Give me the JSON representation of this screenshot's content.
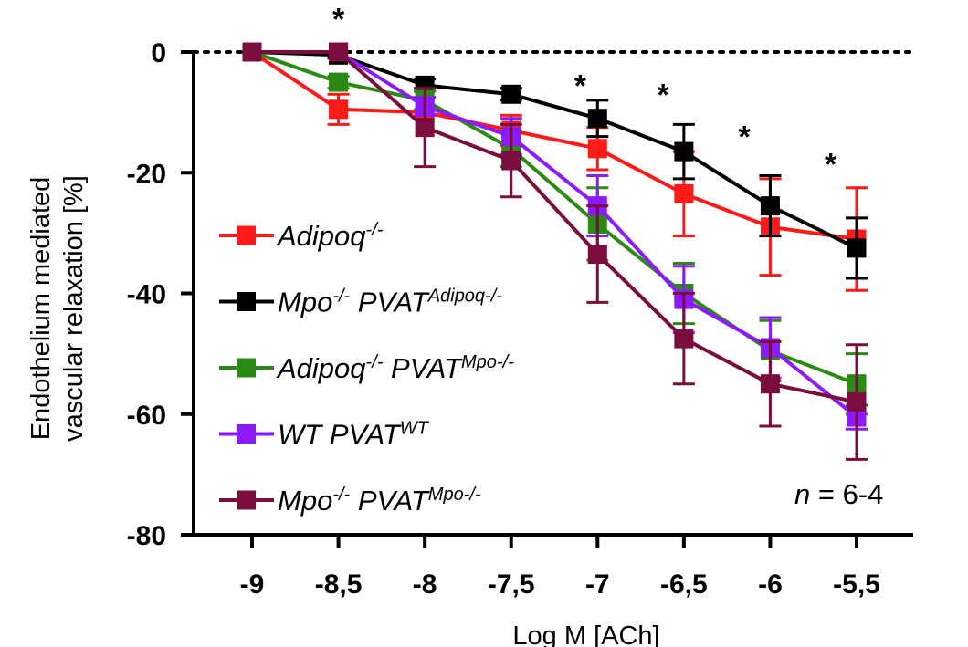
{
  "chart_data": {
    "type": "line",
    "xlabel": "Log M [ACh]",
    "ylabel_line1": "Endothelium mediated",
    "ylabel_line2": "vascular relaxation [%]",
    "x": [
      -9,
      -8.5,
      -8,
      -7.5,
      -7,
      -6.5,
      -6,
      -5.5
    ],
    "x_tick_labels": [
      "-9",
      "-8,5",
      "-8",
      "-7,5",
      "-7",
      "-6,5",
      "-6",
      "-5,5"
    ],
    "y_ticks": [
      0,
      -20,
      -40,
      -60,
      -80
    ],
    "y_tick_labels": [
      "0",
      "-20",
      "-40",
      "-60",
      "-80"
    ],
    "xlim": [
      -9.3,
      -5.1
    ],
    "ylim": [
      -80,
      0
    ],
    "reference_line": 0,
    "series": [
      {
        "name": "Adipoq-/-",
        "label_main": "Adipoq",
        "label_sup": "-/-",
        "color": "#ff1a1a",
        "values": [
          0,
          -9.5,
          -10,
          -13,
          -16,
          -23.5,
          -29,
          -31
        ],
        "errors": [
          0,
          2.5,
          0,
          2.5,
          3.5,
          7,
          8,
          8.5
        ]
      },
      {
        "name": "Mpo-/- PVAT Adipoq-/-",
        "label_main": "Mpo",
        "label_sup": "-/-",
        "label_main2": " PVAT",
        "label_sup2": "Adipoq-/-",
        "color": "#000000",
        "values": [
          0,
          -0.5,
          -5.5,
          -7,
          -11,
          -16.5,
          -25.5,
          -32.5
        ],
        "errors": [
          0,
          0.5,
          1,
          1,
          3,
          4.5,
          5,
          5
        ]
      },
      {
        "name": "Adipoq-/- PVAT Mpo-/-",
        "label_main": "Adipoq",
        "label_sup": "-/-",
        "label_main2": " PVAT",
        "label_sup2": "Mpo-/-",
        "color": "#2a8a14",
        "values": [
          0,
          -5,
          -8,
          -16,
          -28.5,
          -40,
          -49.5,
          -55
        ],
        "errors": [
          0,
          1,
          1.5,
          3,
          6,
          5,
          5,
          5
        ]
      },
      {
        "name": "WT PVAT WT",
        "label_main": "WT",
        "label_sup": "",
        "label_main2": " PVAT",
        "label_sup2": "WT",
        "color": "#8c1aff",
        "values": [
          0,
          0,
          -9,
          -14,
          -25.5,
          -41,
          -49,
          -60.5
        ],
        "errors": [
          0,
          0,
          1.5,
          3,
          5,
          5.5,
          5,
          2
        ]
      },
      {
        "name": "Mpo-/- PVAT Mpo-/-",
        "label_main": "Mpo",
        "label_sup": "-/-",
        "label_main2": " PVAT",
        "label_sup2": "Mpo-/-",
        "color": "#7a0c3e",
        "values": [
          0,
          0,
          -12.5,
          -18,
          -33.5,
          -47.5,
          -55,
          -58
        ],
        "errors": [
          0,
          0,
          6.5,
          6,
          8,
          7.5,
          7,
          9.5
        ]
      }
    ],
    "significance": {
      "symbol": "*",
      "x": [
        -8.5,
        -7.1,
        -6.62,
        -6.15,
        -5.65
      ],
      "y": [
        7,
        -4,
        -5.5,
        -12.5,
        -17
      ]
    },
    "annotation": {
      "italic": "n",
      "rest": " = 6-4"
    },
    "legend_position": "left-center"
  }
}
